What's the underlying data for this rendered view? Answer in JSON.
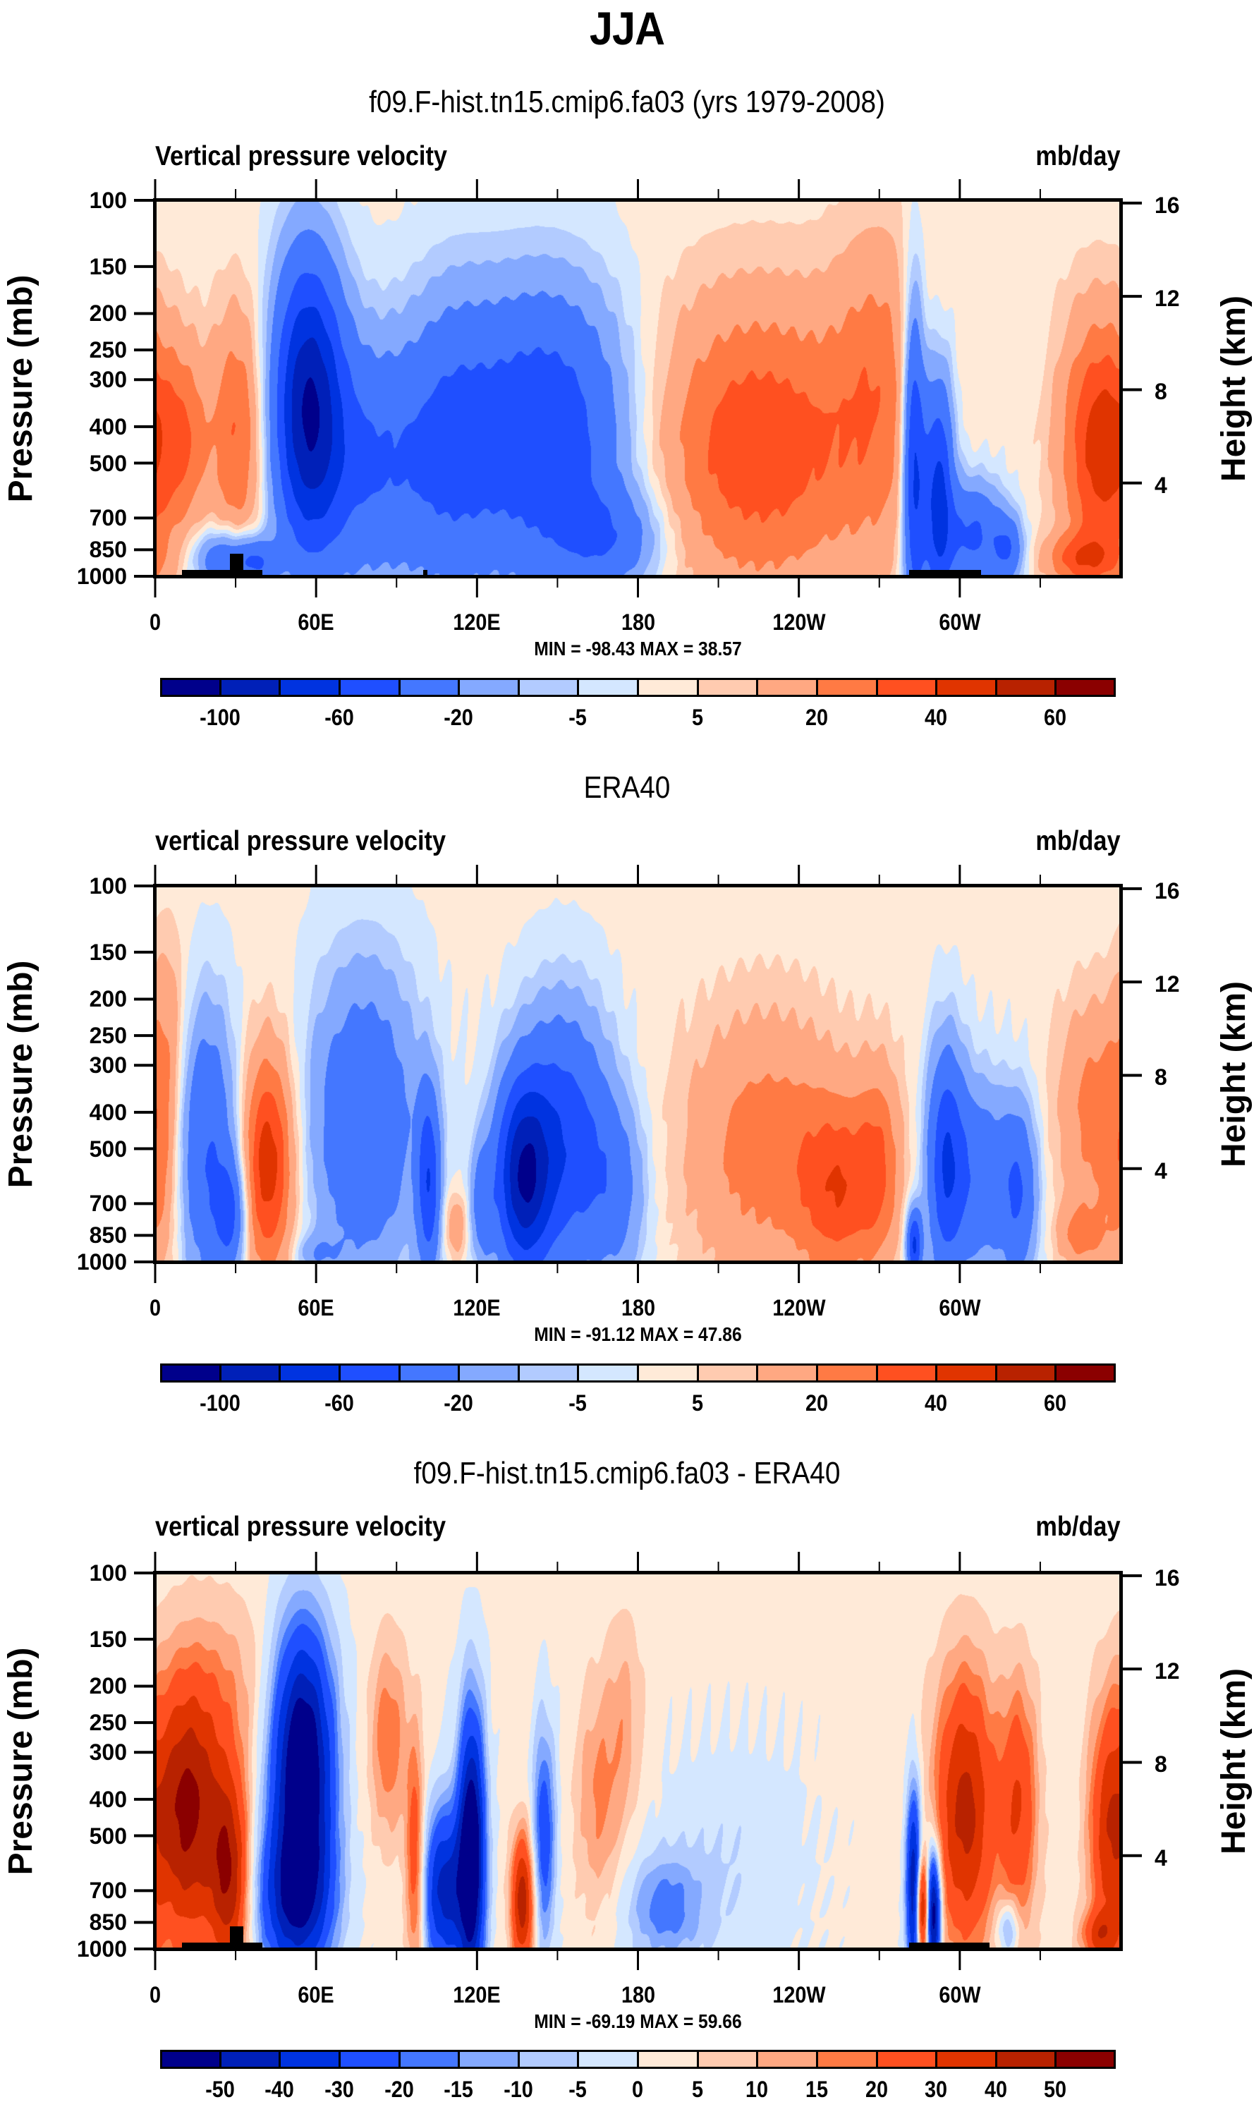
{
  "figure": {
    "title": "JJA"
  },
  "colors": {
    "palette": [
      "#00008b",
      "#0020b8",
      "#0033e0",
      "#1f4fff",
      "#4477ff",
      "#84a9ff",
      "#b2cbff",
      "#d4e7ff",
      "#ffead8",
      "#ffcbb0",
      "#ffa882",
      "#ff7a44",
      "#ff5020",
      "#e03400",
      "#b82200",
      "#8b0000"
    ]
  },
  "chart_data": [
    {
      "type": "heatmap",
      "panel_title": "f09.F-hist.tn15.cmip6.fa03 (yrs 1979-2008)",
      "left_string": "Vertical pressure velocity",
      "right_string": "mb/day",
      "xlabel": "",
      "ylabel": "Pressure (mb)",
      "ylabel_right": "Height (km)",
      "x_range": [
        0,
        360
      ],
      "x_ticks": [
        0,
        60,
        120,
        180,
        240,
        300
      ],
      "x_tick_labels": [
        "0",
        "60E",
        "120E",
        "180",
        "120W",
        "60W"
      ],
      "x_minor_ticks": [
        30,
        90,
        150,
        210,
        270,
        330
      ],
      "y_range": [
        100,
        1000
      ],
      "y_scale": "log",
      "y_ticks": [
        100,
        150,
        200,
        250,
        300,
        400,
        500,
        700,
        850,
        1000
      ],
      "y_tick_labels": [
        "100",
        "150",
        "200",
        "250",
        "300",
        "400",
        "500",
        "700",
        "850",
        "1000"
      ],
      "y_right_ticks": [
        16,
        12,
        8,
        4
      ],
      "y_right_tick_labels": [
        "16",
        "12",
        "8",
        "4"
      ],
      "min_max_label": "MIN = -98.43  MAX =  38.57",
      "min": -98.43,
      "max": 38.57,
      "units": "mb/day",
      "colorbar": {
        "levels": [
          -100,
          -80,
          -60,
          -40,
          -20,
          -10,
          -5,
          0,
          5,
          10,
          20,
          30,
          40,
          50,
          60
        ],
        "labels": [
          "-100",
          "-60",
          "-20",
          "-5",
          "5",
          "20",
          "40",
          "60"
        ],
        "label_levels": [
          -100,
          -60,
          -20,
          -5,
          5,
          20,
          40,
          60
        ]
      },
      "field_features": [
        {
          "lon": 0,
          "p": 450,
          "amp": 22,
          "wlon": 10,
          "wp": 300
        },
        {
          "lon": 12,
          "p": 420,
          "amp": 16,
          "wlon": 6,
          "wp": 200
        },
        {
          "lon": 31,
          "p": 420,
          "amp": 30,
          "wlon": 7,
          "wp": 300
        },
        {
          "lon": 26,
          "p": 900,
          "amp": -40,
          "wlon": 8,
          "wp": 120
        },
        {
          "lon": 38,
          "p": 920,
          "amp": -35,
          "wlon": 5,
          "wp": 100
        },
        {
          "lon": 57,
          "p": 350,
          "amp": -95,
          "wlon": 9,
          "wp": 300
        },
        {
          "lon": 80,
          "p": 500,
          "amp": -40,
          "wlon": 16,
          "wp": 350
        },
        {
          "lon": 110,
          "p": 450,
          "amp": -30,
          "wlon": 12,
          "wp": 400
        },
        {
          "lon": 145,
          "p": 420,
          "amp": -60,
          "wlon": 22,
          "wp": 350
        },
        {
          "lon": 170,
          "p": 800,
          "amp": -30,
          "wlon": 14,
          "wp": 200
        },
        {
          "lon": 225,
          "p": 450,
          "amp": 36,
          "wlon": 30,
          "wp": 400
        },
        {
          "lon": 270,
          "p": 300,
          "amp": 18,
          "wlon": 12,
          "wp": 300
        },
        {
          "lon": 283,
          "p": 500,
          "amp": -70,
          "wlon": 3,
          "wp": 500
        },
        {
          "lon": 292,
          "p": 600,
          "amp": -70,
          "wlon": 4,
          "wp": 400
        },
        {
          "lon": 305,
          "p": 780,
          "amp": -45,
          "wlon": 8,
          "wp": 200
        },
        {
          "lon": 318,
          "p": 850,
          "amp": -35,
          "wlon": 4,
          "wp": 130
        },
        {
          "lon": 350,
          "p": 450,
          "amp": 30,
          "wlon": 10,
          "wp": 350
        },
        {
          "lon": 345,
          "p": 900,
          "amp": 25,
          "wlon": 10,
          "wp": 100
        }
      ],
      "topography": [
        {
          "lon_start": 10,
          "lon_end": 40,
          "p_top": 960
        },
        {
          "lon_start": 28,
          "lon_end": 33,
          "p_top": 870
        },
        {
          "lon_start": 100,
          "lon_end": 101.5,
          "p_top": 960
        },
        {
          "lon_start": 281,
          "lon_end": 308,
          "p_top": 960
        }
      ]
    },
    {
      "type": "heatmap",
      "panel_title": "ERA40",
      "left_string": "vertical pressure velocity",
      "right_string": "mb/day",
      "xlabel": "",
      "ylabel": "Pressure (mb)",
      "ylabel_right": "Height (km)",
      "x_range": [
        0,
        360
      ],
      "x_ticks": [
        0,
        60,
        120,
        180,
        240,
        300
      ],
      "x_tick_labels": [
        "0",
        "60E",
        "120E",
        "180",
        "120W",
        "60W"
      ],
      "x_minor_ticks": [
        30,
        90,
        150,
        210,
        270,
        330
      ],
      "y_range": [
        100,
        1000
      ],
      "y_scale": "log",
      "y_ticks": [
        100,
        150,
        200,
        250,
        300,
        400,
        500,
        700,
        850,
        1000
      ],
      "y_tick_labels": [
        "100",
        "150",
        "200",
        "250",
        "300",
        "400",
        "500",
        "700",
        "850",
        "1000"
      ],
      "y_right_ticks": [
        16,
        12,
        8,
        4
      ],
      "y_right_tick_labels": [
        "16",
        "12",
        "8",
        "4"
      ],
      "min_max_label": "MIN = -91.12  MAX =  47.86",
      "min": -91.12,
      "max": 47.86,
      "units": "mb/day",
      "colorbar": {
        "levels": [
          -100,
          -80,
          -60,
          -40,
          -20,
          -10,
          -5,
          0,
          5,
          10,
          20,
          30,
          40,
          50,
          60
        ],
        "labels": [
          "-100",
          "-60",
          "-20",
          "-5",
          "5",
          "20",
          "40",
          "60"
        ],
        "label_levels": [
          -100,
          -60,
          -20,
          -5,
          5,
          20,
          40,
          60
        ]
      },
      "field_features": [
        {
          "lon": 2,
          "p": 600,
          "amp": 18,
          "wlon": 6,
          "wp": 400
        },
        {
          "lon": 5,
          "p": 250,
          "amp": 14,
          "wlon": 5,
          "wp": 150
        },
        {
          "lon": 19,
          "p": 500,
          "amp": -42,
          "wlon": 8,
          "wp": 400
        },
        {
          "lon": 28,
          "p": 750,
          "amp": -40,
          "wlon": 4,
          "wp": 200
        },
        {
          "lon": 42,
          "p": 550,
          "amp": 46,
          "wlon": 7,
          "wp": 350
        },
        {
          "lon": 60,
          "p": 950,
          "amp": -15,
          "wlon": 6,
          "wp": 80
        },
        {
          "lon": 78,
          "p": 430,
          "amp": -40,
          "wlon": 14,
          "wp": 400
        },
        {
          "lon": 102,
          "p": 620,
          "amp": -55,
          "wlon": 3,
          "wp": 300
        },
        {
          "lon": 112,
          "p": 800,
          "amp": 18,
          "wlon": 3,
          "wp": 120
        },
        {
          "lon": 122,
          "p": 700,
          "amp": -30,
          "wlon": 3,
          "wp": 200
        },
        {
          "lon": 137,
          "p": 600,
          "amp": -85,
          "wlon": 7,
          "wp": 300
        },
        {
          "lon": 152,
          "p": 480,
          "amp": -55,
          "wlon": 12,
          "wp": 350
        },
        {
          "lon": 172,
          "p": 650,
          "amp": -25,
          "wlon": 8,
          "wp": 300
        },
        {
          "lon": 228,
          "p": 500,
          "amp": 24,
          "wlon": 22,
          "wp": 400
        },
        {
          "lon": 255,
          "p": 650,
          "amp": 28,
          "wlon": 10,
          "wp": 300
        },
        {
          "lon": 270,
          "p": 550,
          "amp": 22,
          "wlon": 6,
          "wp": 300
        },
        {
          "lon": 283,
          "p": 900,
          "amp": -65,
          "wlon": 2,
          "wp": 150
        },
        {
          "lon": 295,
          "p": 550,
          "amp": -60,
          "wlon": 5,
          "wp": 350
        },
        {
          "lon": 308,
          "p": 600,
          "amp": -35,
          "wlon": 7,
          "wp": 300
        },
        {
          "lon": 322,
          "p": 650,
          "amp": -40,
          "wlon": 5,
          "wp": 300
        },
        {
          "lon": 350,
          "p": 400,
          "amp": 22,
          "wlon": 10,
          "wp": 250
        },
        {
          "lon": 345,
          "p": 850,
          "amp": 20,
          "wlon": 6,
          "wp": 120
        }
      ],
      "topography": []
    },
    {
      "type": "heatmap",
      "panel_title": "f09.F-hist.tn15.cmip6.fa03 - ERA40",
      "left_string": "vertical pressure velocity",
      "right_string": "mb/day",
      "xlabel": "",
      "ylabel": "Pressure (mb)",
      "ylabel_right": "Height (km)",
      "x_range": [
        0,
        360
      ],
      "x_ticks": [
        0,
        60,
        120,
        180,
        240,
        300
      ],
      "x_tick_labels": [
        "0",
        "60E",
        "120E",
        "180",
        "120W",
        "60W"
      ],
      "x_minor_ticks": [
        30,
        90,
        150,
        210,
        270,
        330
      ],
      "y_range": [
        100,
        1000
      ],
      "y_scale": "log",
      "y_ticks": [
        100,
        150,
        200,
        250,
        300,
        400,
        500,
        700,
        850,
        1000
      ],
      "y_tick_labels": [
        "100",
        "150",
        "200",
        "250",
        "300",
        "400",
        "500",
        "700",
        "850",
        "1000"
      ],
      "y_right_ticks": [
        16,
        12,
        8,
        4
      ],
      "y_right_tick_labels": [
        "16",
        "12",
        "8",
        "4"
      ],
      "min_max_label": "MIN = -69.19  MAX =  59.66",
      "min": -69.19,
      "max": 59.66,
      "units": "mb/day",
      "colorbar": {
        "levels": [
          -50,
          -40,
          -30,
          -20,
          -15,
          -10,
          -5,
          0,
          5,
          10,
          15,
          20,
          30,
          40,
          50
        ],
        "labels": [
          "-50",
          "-40",
          "-30",
          "-20",
          "-15",
          "-10",
          "-5",
          "0",
          "5",
          "10",
          "15",
          "20",
          "30",
          "40",
          "50"
        ],
        "label_levels": [
          -50,
          -40,
          -30,
          -20,
          -15,
          -10,
          -5,
          0,
          5,
          10,
          15,
          20,
          30,
          40,
          50
        ]
      },
      "field_features": [
        {
          "lon": 12,
          "p": 430,
          "amp": 52,
          "wlon": 10,
          "wp": 350
        },
        {
          "lon": 28,
          "p": 650,
          "amp": 40,
          "wlon": 5,
          "wp": 350
        },
        {
          "lon": 55,
          "p": 330,
          "amp": -68,
          "wlon": 8,
          "wp": 260
        },
        {
          "lon": 52,
          "p": 750,
          "amp": -40,
          "wlon": 10,
          "wp": 300
        },
        {
          "lon": 30,
          "p": 200,
          "amp": 8,
          "wlon": 10,
          "wp": 100
        },
        {
          "lon": 87,
          "p": 280,
          "amp": 18,
          "wlon": 5,
          "wp": 150
        },
        {
          "lon": 97,
          "p": 600,
          "amp": 28,
          "wlon": 2.5,
          "wp": 400
        },
        {
          "lon": 118,
          "p": 550,
          "amp": -65,
          "wlon": 3.5,
          "wp": 450
        },
        {
          "lon": 108,
          "p": 700,
          "amp": -45,
          "wlon": 6,
          "wp": 300
        },
        {
          "lon": 137,
          "p": 750,
          "amp": 45,
          "wlon": 3,
          "wp": 250
        },
        {
          "lon": 145,
          "p": 500,
          "amp": -28,
          "wlon": 3,
          "wp": 300
        },
        {
          "lon": 165,
          "p": 400,
          "amp": 14,
          "wlon": 6,
          "wp": 250
        },
        {
          "lon": 175,
          "p": 250,
          "amp": 10,
          "wlon": 5,
          "wp": 150
        },
        {
          "lon": 190,
          "p": 780,
          "amp": -18,
          "wlon": 10,
          "wp": 200
        },
        {
          "lon": 215,
          "p": 600,
          "amp": -6,
          "wlon": 20,
          "wp": 400
        },
        {
          "lon": 283,
          "p": 700,
          "amp": -60,
          "wlon": 2,
          "wp": 350
        },
        {
          "lon": 286,
          "p": 780,
          "amp": 58,
          "wlon": 2,
          "wp": 200
        },
        {
          "lon": 290,
          "p": 800,
          "amp": -69,
          "wlon": 2,
          "wp": 250
        },
        {
          "lon": 302,
          "p": 430,
          "amp": 42,
          "wlon": 8,
          "wp": 350
        },
        {
          "lon": 322,
          "p": 420,
          "amp": 28,
          "wlon": 5,
          "wp": 300
        },
        {
          "lon": 318,
          "p": 880,
          "amp": -20,
          "wlon": 3,
          "wp": 120
        },
        {
          "lon": 355,
          "p": 500,
          "amp": 26,
          "wlon": 5,
          "wp": 350
        },
        {
          "lon": 352,
          "p": 920,
          "amp": 24,
          "wlon": 5,
          "wp": 100
        }
      ],
      "topography": [
        {
          "lon_start": 10,
          "lon_end": 40,
          "p_top": 960
        },
        {
          "lon_start": 28,
          "lon_end": 33,
          "p_top": 870
        },
        {
          "lon_start": 281,
          "lon_end": 311,
          "p_top": 960
        }
      ]
    }
  ]
}
